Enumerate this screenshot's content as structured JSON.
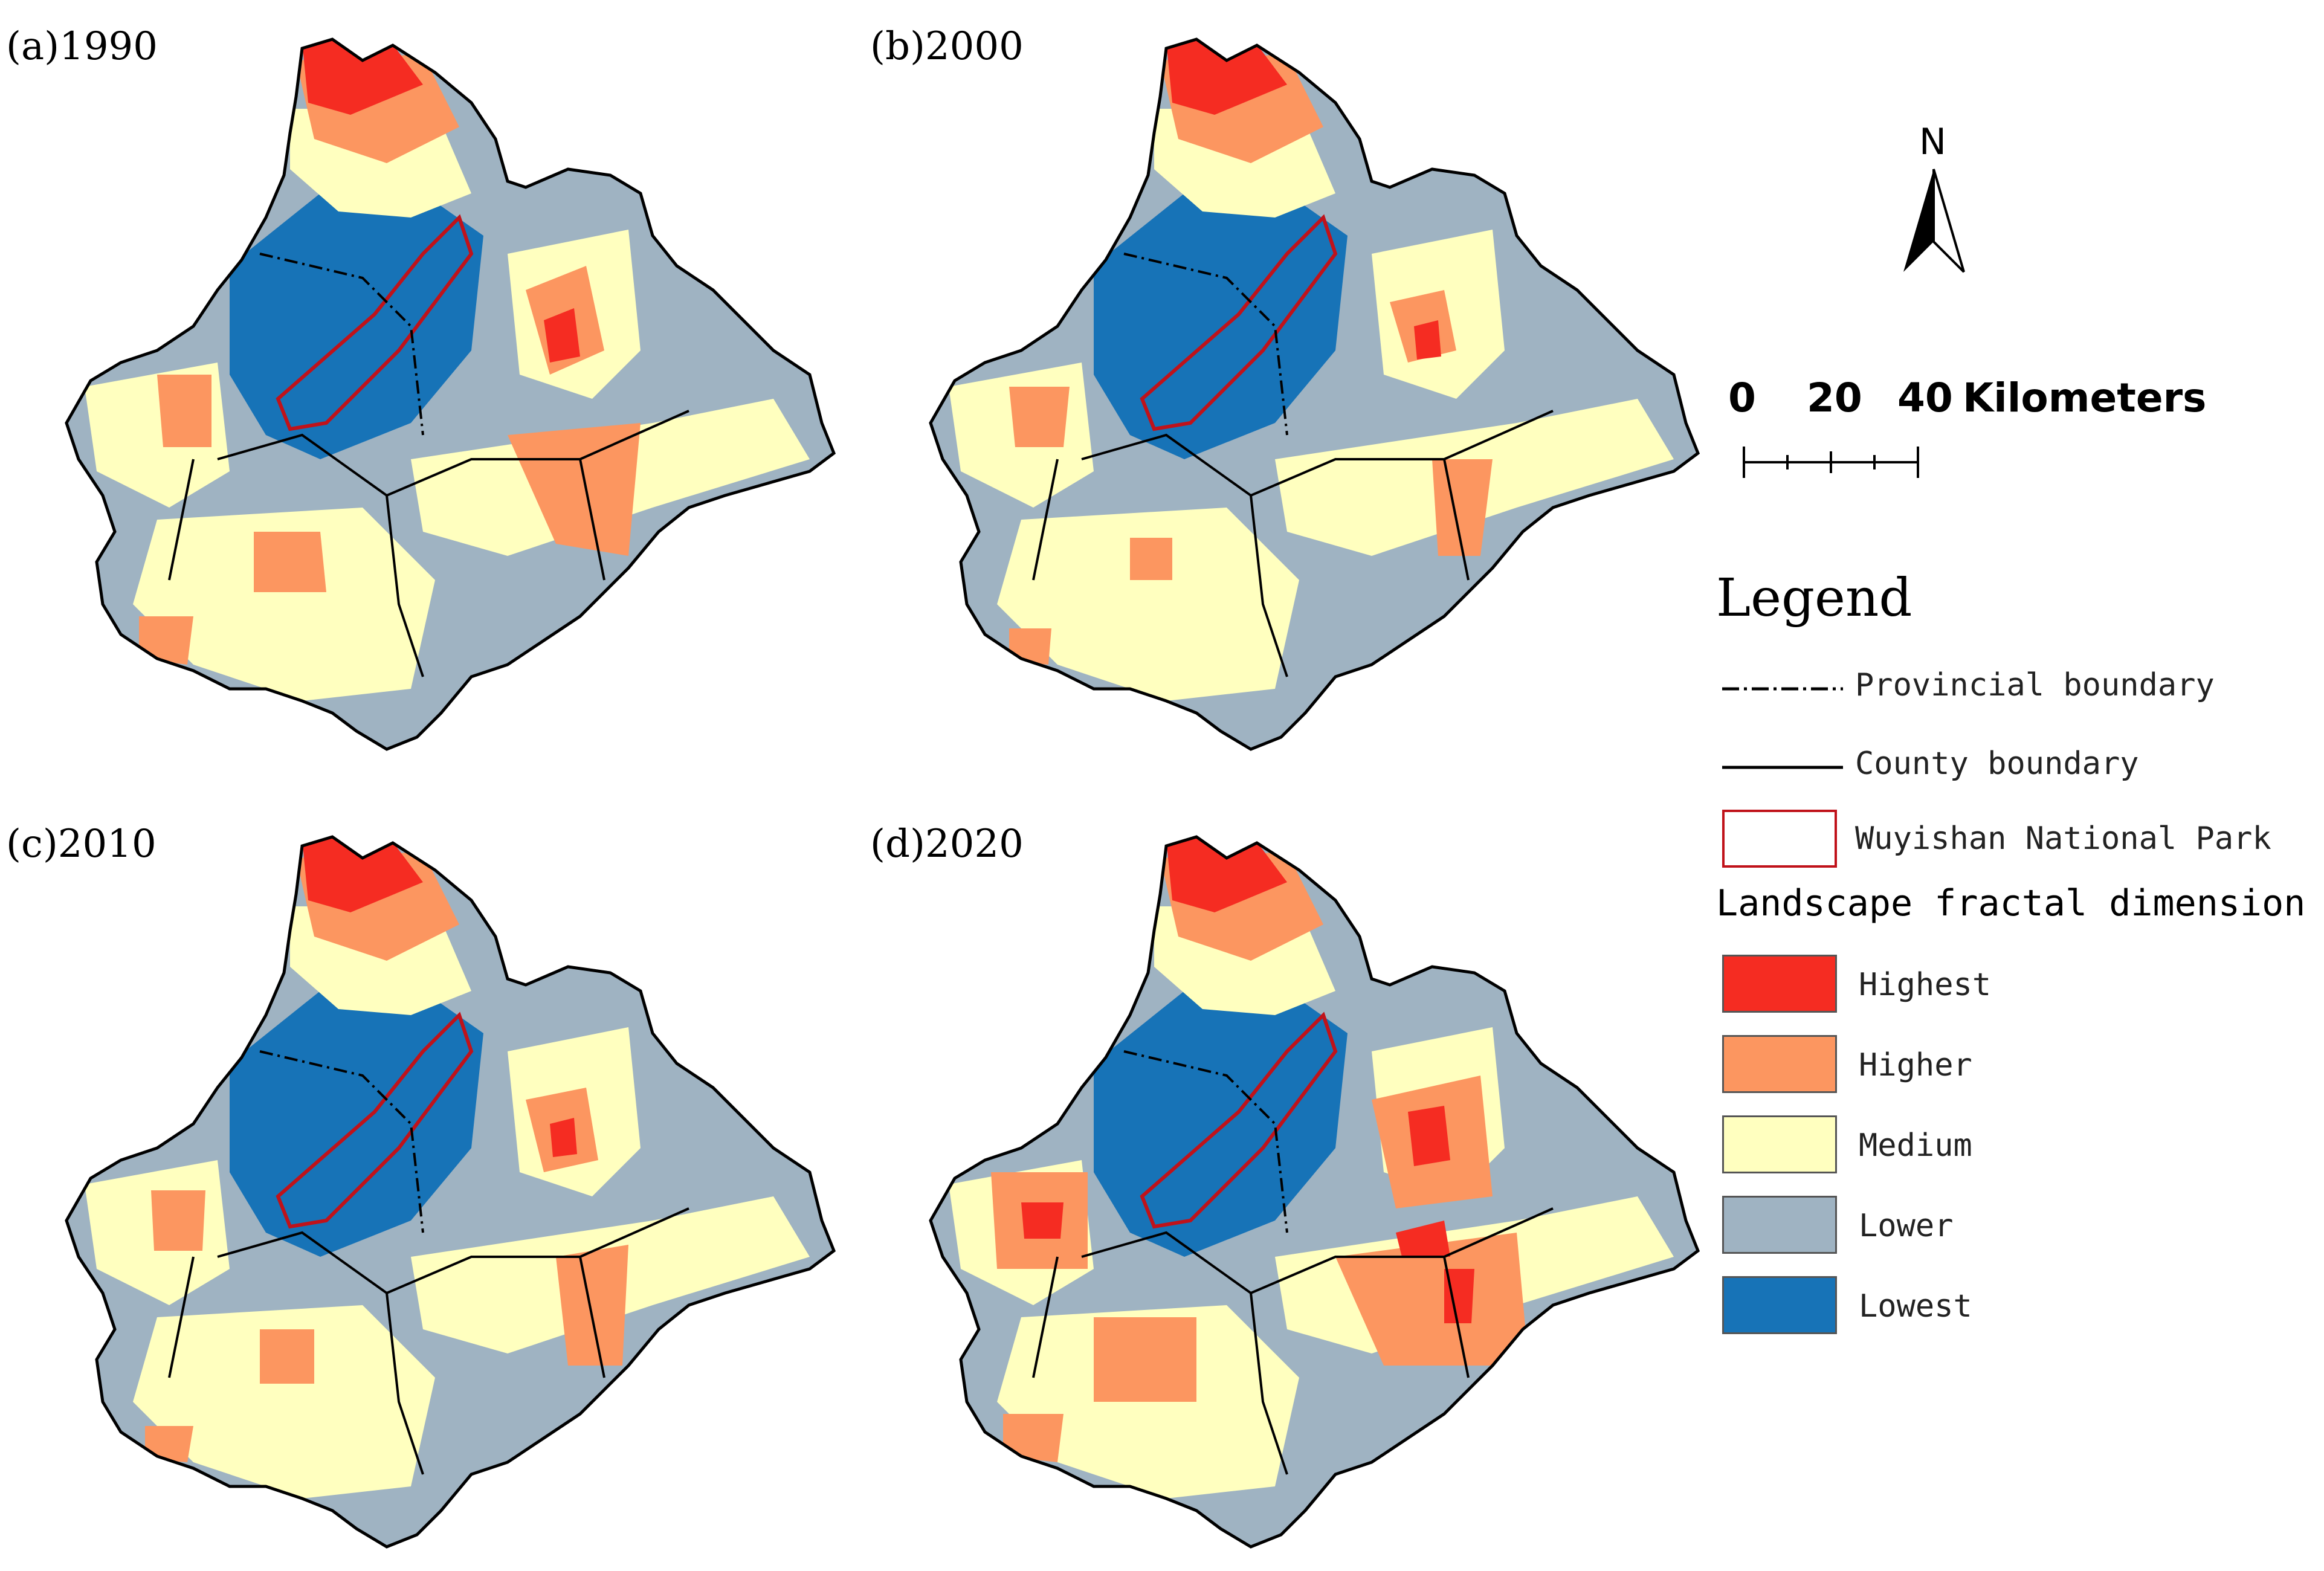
{
  "panels": [
    {
      "label": "(a)1990"
    },
    {
      "label": "(b)2000"
    },
    {
      "label": "(c)2010"
    },
    {
      "label": "(d)2020"
    }
  ],
  "north_arrow": {
    "letter": "N"
  },
  "scale": {
    "ticks": [
      "0",
      "20",
      "40"
    ],
    "unit": "Kilometers"
  },
  "legend": {
    "title": "Legend",
    "provincial": "Provincial boundary",
    "county": "County boundary",
    "park": "Wuyishan National Park",
    "section_title": "Landscape fractal dimension",
    "classes": [
      {
        "label": "Highest",
        "color": "#f52c22"
      },
      {
        "label": "Higher",
        "color": "#fc9660"
      },
      {
        "label": "Medium",
        "color": "#ffffbf"
      },
      {
        "label": "Lower",
        "color": "#9fb3c2"
      },
      {
        "label": "Lowest",
        "color": "#1773b7"
      }
    ],
    "park_color": "#c0121a"
  }
}
